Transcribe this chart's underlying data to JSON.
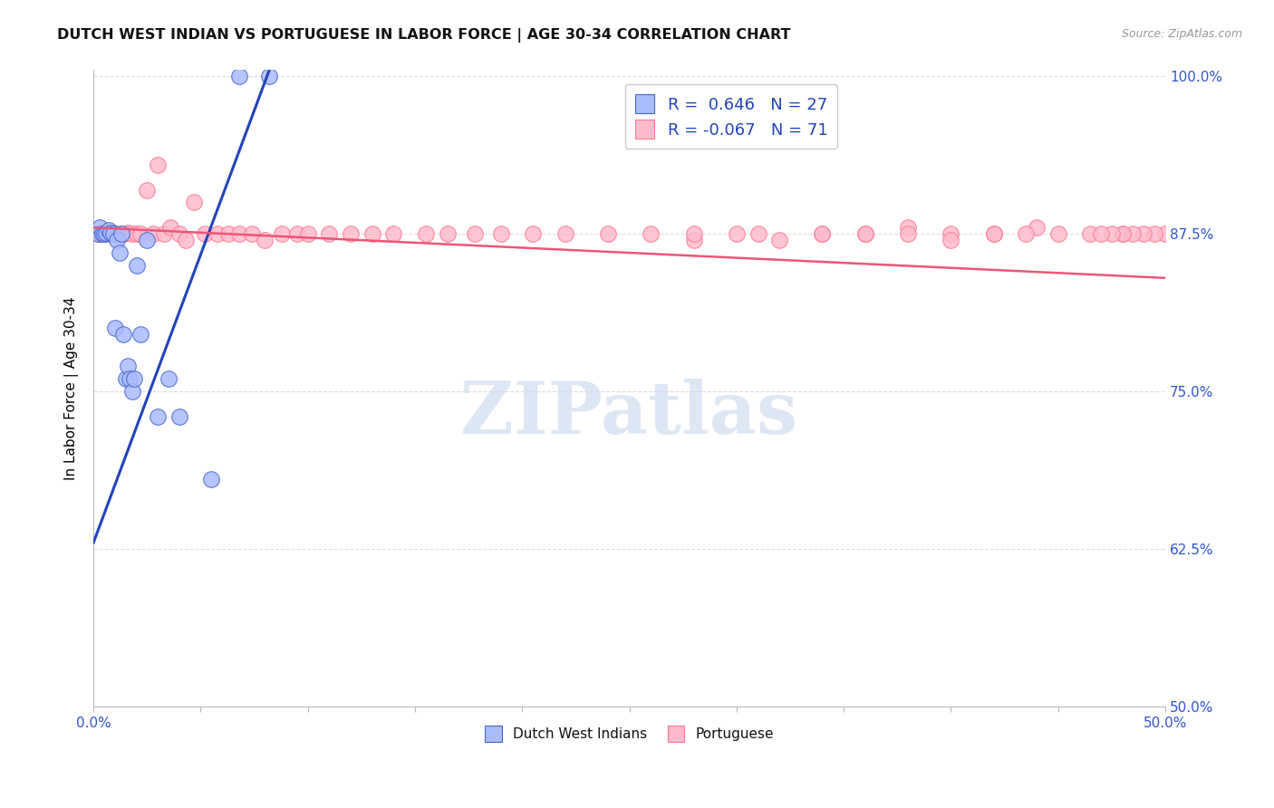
{
  "title": "DUTCH WEST INDIAN VS PORTUGUESE IN LABOR FORCE | AGE 30-34 CORRELATION CHART",
  "source": "Source: ZipAtlas.com",
  "ylabel": "In Labor Force | Age 30-34",
  "xlim": [
    0.0,
    0.5
  ],
  "ylim": [
    0.5,
    1.005
  ],
  "xtick_positions": [
    0.0,
    0.05,
    0.1,
    0.15,
    0.2,
    0.25,
    0.3,
    0.35,
    0.4,
    0.45,
    0.5
  ],
  "xtick_labels": [
    "0.0%",
    "",
    "",
    "",
    "",
    "",
    "",
    "",
    "",
    "",
    "50.0%"
  ],
  "ytick_positions": [
    0.5,
    0.625,
    0.75,
    0.875,
    1.0
  ],
  "ytick_labels": [
    "50.0%",
    "62.5%",
    "75.0%",
    "87.5%",
    "100.0%"
  ],
  "legend_blue_label": "R =  0.646   N = 27",
  "legend_pink_label": "R = -0.067   N = 71",
  "legend_bottom_blue": "Dutch West Indians",
  "legend_bottom_pink": "Portuguese",
  "blue_scatter_color": "#AABBFF",
  "blue_edge_color": "#4466CC",
  "pink_scatter_color": "#FFBBCC",
  "pink_edge_color": "#FF7799",
  "blue_line_color": "#2244BB",
  "pink_line_color": "#EE5577",
  "blue_r": 0.646,
  "blue_n": 27,
  "pink_r": -0.067,
  "pink_n": 71,
  "blue_x": [
    0.002,
    0.003,
    0.004,
    0.005,
    0.006,
    0.007,
    0.008,
    0.009,
    0.01,
    0.011,
    0.012,
    0.013,
    0.014,
    0.015,
    0.016,
    0.017,
    0.018,
    0.019,
    0.02,
    0.022,
    0.025,
    0.03,
    0.035,
    0.04,
    0.055,
    0.068,
    0.082
  ],
  "blue_y": [
    0.875,
    0.88,
    0.875,
    0.875,
    0.876,
    0.878,
    0.876,
    0.875,
    0.8,
    0.87,
    0.86,
    0.875,
    0.795,
    0.76,
    0.77,
    0.76,
    0.75,
    0.76,
    0.85,
    0.795,
    0.87,
    0.73,
    0.76,
    0.73,
    0.68,
    1.0,
    1.0
  ],
  "pink_x": [
    0.002,
    0.003,
    0.004,
    0.005,
    0.006,
    0.007,
    0.008,
    0.009,
    0.01,
    0.012,
    0.014,
    0.016,
    0.018,
    0.02,
    0.022,
    0.025,
    0.028,
    0.03,
    0.033,
    0.036,
    0.04,
    0.043,
    0.047,
    0.052,
    0.058,
    0.063,
    0.068,
    0.074,
    0.08,
    0.088,
    0.095,
    0.1,
    0.11,
    0.12,
    0.13,
    0.14,
    0.155,
    0.165,
    0.178,
    0.19,
    0.205,
    0.22,
    0.24,
    0.26,
    0.28,
    0.3,
    0.32,
    0.34,
    0.36,
    0.38,
    0.4,
    0.42,
    0.44,
    0.465,
    0.48,
    0.5,
    0.495,
    0.49,
    0.485,
    0.48,
    0.475,
    0.47,
    0.45,
    0.435,
    0.42,
    0.4,
    0.38,
    0.36,
    0.34,
    0.31,
    0.28
  ],
  "pink_y": [
    0.875,
    0.876,
    0.875,
    0.875,
    0.876,
    0.875,
    0.875,
    0.876,
    0.875,
    0.875,
    0.875,
    0.876,
    0.875,
    0.875,
    0.875,
    0.91,
    0.875,
    0.93,
    0.875,
    0.88,
    0.875,
    0.87,
    0.9,
    0.875,
    0.875,
    0.875,
    0.875,
    0.875,
    0.87,
    0.875,
    0.875,
    0.875,
    0.875,
    0.875,
    0.875,
    0.875,
    0.875,
    0.875,
    0.875,
    0.875,
    0.875,
    0.875,
    0.875,
    0.875,
    0.87,
    0.875,
    0.87,
    0.875,
    0.875,
    0.88,
    0.875,
    0.875,
    0.88,
    0.875,
    0.875,
    0.875,
    0.875,
    0.875,
    0.875,
    0.875,
    0.875,
    0.875,
    0.875,
    0.875,
    0.875,
    0.87,
    0.875,
    0.875,
    0.875,
    0.875,
    0.875
  ],
  "watermark_text": "ZIPatlas",
  "watermark_color": "#C8D8EE",
  "background_color": "#FFFFFF",
  "grid_color": "#DDDDDD",
  "blue_trend_x": [
    0.0,
    0.082
  ],
  "blue_trend_y": [
    0.63,
    1.005
  ],
  "pink_trend_x": [
    0.0,
    0.5
  ],
  "pink_trend_y": [
    0.88,
    0.84
  ]
}
